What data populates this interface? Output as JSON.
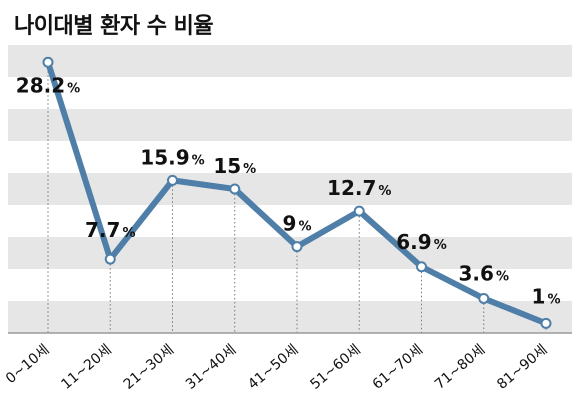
{
  "chart_data": {
    "type": "line",
    "title": "나이대별 환자 수 비율",
    "categories": [
      "0~10세",
      "11~20세",
      "21~30세",
      "31~40세",
      "41~50세",
      "51~60세",
      "61~70세",
      "71~80세",
      "81~90세"
    ],
    "series": [
      {
        "values": [
          28.2,
          7.7,
          15.9,
          15,
          9,
          12.7,
          6.9,
          3.6,
          1
        ],
        "labels": [
          "28.2",
          "7.7",
          "15.9",
          "15",
          "9",
          "12.7",
          "6.9",
          "3.6",
          "1"
        ]
      }
    ],
    "unit": "%",
    "ylim": [
      0,
      30
    ],
    "grid": true,
    "colors": {
      "line": "#4f7fa8",
      "band": "#e6e6e6",
      "marker_fill": "#ffffff",
      "text": "#111111"
    }
  }
}
